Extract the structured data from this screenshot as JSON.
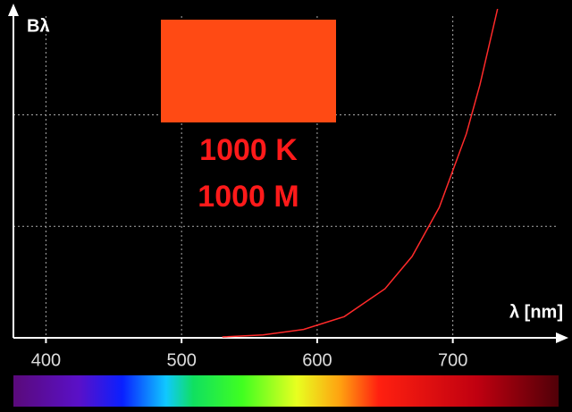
{
  "chart_data": {
    "type": "line",
    "y_label": "Bλ",
    "x_label": "λ [nm]",
    "temperature_label": "1000 K",
    "magnitude_label": "1000 M",
    "swatch_color": "#ff4a14",
    "color": "#ff2a2a",
    "x": [
      530,
      560,
      590,
      620,
      650,
      670,
      690,
      710,
      720,
      733
    ],
    "values": [
      0.008,
      0.026,
      0.075,
      0.19,
      0.44,
      0.73,
      1.17,
      1.83,
      2.27,
      2.95
    ],
    "xlim": [
      376,
      778
    ],
    "xticks": [
      400,
      500,
      600,
      700
    ],
    "ylim": [
      0,
      2.95
    ],
    "yticks": [
      1,
      2
    ],
    "grid": true
  }
}
